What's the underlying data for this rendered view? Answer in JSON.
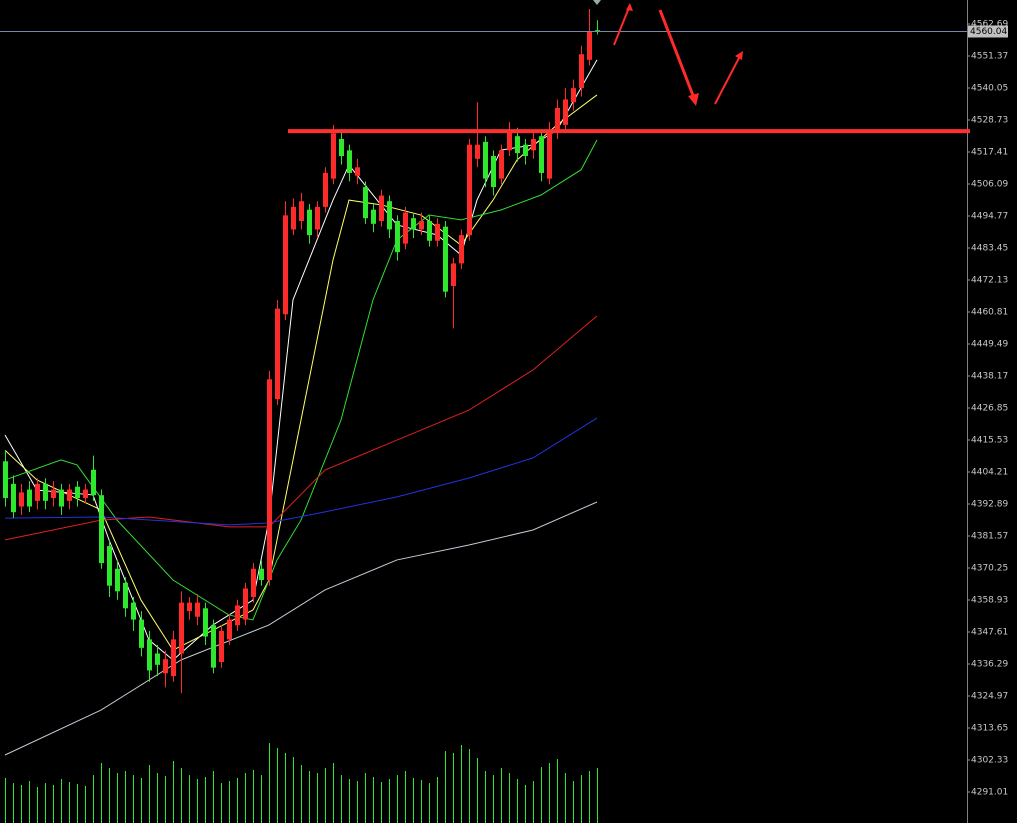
{
  "chart_data": {
    "type": "candlestick",
    "up_color": "#ff2a2a",
    "down_color": "#2ee82e",
    "open": [
      4408,
      4400,
      4392,
      4398,
      4394,
      4400,
      4395,
      4398,
      4394,
      4399,
      4395,
      4405,
      4396,
      4378,
      4370,
      4365,
      4358,
      4352,
      4345,
      4340,
      4333,
      4332,
      4340,
      4355,
      4353,
      4356,
      4350,
      4337,
      4345,
      4350,
      4352,
      4360,
      4370,
      4366,
      4430,
      4460,
      4490,
      4493,
      4497,
      4490,
      4498,
      4508,
      4522,
      4518,
      4509,
      4505,
      4497,
      4493,
      4500,
      4493,
      4485,
      4494,
      4490,
      4493,
      4486,
      4491,
      4470,
      4478,
      4488,
      4515,
      4521,
      4516,
      4508,
      4518,
      4523,
      4520,
      4518,
      4523,
      4508,
      4525,
      4527,
      4535,
      4540,
      4550,
      4560.5
    ],
    "high": [
      4412,
      4403,
      4400,
      4401,
      4402,
      4402,
      4401,
      4400,
      4400,
      4401,
      4400,
      4410,
      4398,
      4380,
      4373,
      4367,
      4360,
      4355,
      4348,
      4343,
      4341,
      4348,
      4362,
      4360,
      4361,
      4358,
      4352,
      4350,
      4354,
      4359,
      4365,
      4372,
      4373,
      4440,
      4465,
      4500,
      4501,
      4503,
      4499,
      4500,
      4512,
      4527,
      4525,
      4520,
      4515,
      4507,
      4499,
      4504,
      4502,
      4495,
      4498,
      4496,
      4496,
      4495,
      4494,
      4493,
      4480,
      4490,
      4522,
      4535,
      4523,
      4518,
      4520,
      4528,
      4526,
      4522,
      4525,
      4525,
      4528,
      4536,
      4540,
      4543,
      4555,
      4568,
      4564
    ],
    "low": [
      4392,
      4388,
      4389,
      4390,
      4391,
      4391,
      4392,
      4389,
      4391,
      4392,
      4393,
      4394,
      4370,
      4360,
      4359,
      4353,
      4348,
      4339,
      4330,
      4332,
      4328,
      4330,
      4326,
      4352,
      4350,
      4343,
      4333,
      4335,
      4343,
      4348,
      4350,
      4358,
      4364,
      4364,
      4428,
      4458,
      4488,
      4490,
      4485,
      4487,
      4496,
      4506,
      4513,
      4507,
      4506,
      4492,
      4489,
      4491,
      4487,
      4479,
      4483,
      4487,
      4488,
      4484,
      4484,
      4466,
      4455,
      4476,
      4486,
      4512,
      4505,
      4502,
      4506,
      4516,
      4514,
      4513,
      4515,
      4507,
      4506,
      4522,
      4525,
      4532,
      4537,
      4548,
      4559
    ],
    "close": [
      4395,
      4390,
      4397,
      4392,
      4400,
      4394,
      4398,
      4392,
      4398,
      4395,
      4398,
      4396,
      4372,
      4364,
      4362,
      4356,
      4352,
      4342,
      4334,
      4336,
      4338,
      4345,
      4358,
      4358,
      4358,
      4346,
      4335,
      4348,
      4352,
      4357,
      4363,
      4370,
      4366,
      4437,
      4462,
      4495,
      4498,
      4500,
      4488,
      4498,
      4510,
      4524,
      4516,
      4510,
      4512,
      4494,
      4492,
      4502,
      4490,
      4482,
      4496,
      4490,
      4493,
      4486,
      4492,
      4468,
      4478,
      4488,
      4520,
      4520,
      4508,
      4505,
      4518,
      4525,
      4517,
      4516,
      4522,
      4510,
      4525,
      4533,
      4536,
      4540,
      4552,
      4560,
      4560.04
    ],
    "volume": [
      45,
      40,
      38,
      42,
      36,
      40,
      38,
      44,
      41,
      39,
      37,
      48,
      60,
      55,
      50,
      52,
      48,
      45,
      58,
      50,
      47,
      62,
      55,
      48,
      44,
      46,
      52,
      40,
      42,
      45,
      50,
      53,
      48,
      80,
      75,
      70,
      66,
      58,
      52,
      50,
      55,
      60,
      48,
      44,
      42,
      50,
      46,
      41,
      44,
      48,
      52,
      45,
      43,
      40,
      46,
      72,
      70,
      78,
      74,
      65,
      52,
      48,
      55,
      50,
      44,
      38,
      42,
      56,
      60,
      64,
      50,
      42,
      48,
      52,
      55
    ],
    "series": [
      {
        "color": "#ffffff",
        "x": [
          0,
          4,
          11,
          13,
          18,
          21,
          26,
          31,
          33,
          36,
          41,
          43,
          46,
          49,
          54,
          57,
          59,
          62,
          66,
          69,
          74
        ],
        "values": [
          4417.3,
          4397.8,
          4396.1,
          4380.2,
          4344.8,
          4337.7,
          4350.1,
          4358.9,
          4387.2,
          4465.1,
          4500.4,
          4512.8,
          4502.2,
          4491.6,
          4488.1,
          4481.0,
          4500.4,
          4518.1,
          4519.9,
          4525.2,
          4550.0
        ]
      },
      {
        "color": "#ffff66",
        "x": [
          0,
          4,
          12,
          17,
          21,
          26,
          31,
          33,
          37,
          41,
          43,
          47,
          52,
          57,
          61,
          64,
          69,
          74
        ],
        "values": [
          4411.9,
          4401.4,
          4390.8,
          4358.9,
          4341.2,
          4348.3,
          4355.4,
          4366.0,
          4422.6,
          4479.2,
          4500.4,
          4498.7,
          4495.1,
          4484.5,
          4500.4,
          4514.6,
          4527.0,
          4537.6
        ]
      },
      {
        "color": "#33dd33",
        "x": [
          0,
          7,
          9,
          14,
          21,
          28,
          31,
          34,
          37,
          42,
          46,
          49,
          53,
          57,
          62,
          67,
          72,
          74
        ],
        "values": [
          4401.4,
          4408.5,
          4406.7,
          4387.2,
          4366.0,
          4353.6,
          4351.9,
          4373.1,
          4387.2,
          4422.6,
          4465.1,
          4486.3,
          4495.1,
          4493.4,
          4496.9,
          4502.2,
          4511.1,
          4521.7
        ]
      },
      {
        "color": "#e02020",
        "x": [
          0,
          12,
          18,
          28,
          33,
          40,
          49,
          58,
          66,
          74
        ],
        "values": [
          4380.2,
          4387.2,
          4388.3,
          4384.8,
          4384.8,
          4404.9,
          4415.5,
          4426.1,
          4440.3,
          4459.4
        ]
      },
      {
        "color": "#2233dd",
        "x": [
          0,
          12,
          28,
          33,
          40,
          49,
          58,
          66,
          74
        ],
        "values": [
          4387.9,
          4388.3,
          4385.5,
          4386.2,
          4390.1,
          4395.4,
          4402.1,
          4409.2,
          4423.3
        ]
      },
      {
        "color": "#c8c8d8",
        "x": [
          0,
          12,
          22,
          33,
          40,
          49,
          58,
          66,
          74
        ],
        "values": [
          4304.1,
          4320.0,
          4337.7,
          4350.1,
          4362.5,
          4373.1,
          4378.4,
          4383.7,
          4393.6
        ]
      }
    ],
    "levels": [
      4524.8
    ],
    "last_price": 4560.04,
    "ylim": [
      4280.04,
      4571.18
    ],
    "yticks": [
      4562.69,
      4551.37,
      4540.05,
      4528.73,
      4517.41,
      4506.09,
      4494.77,
      4483.45,
      4472.13,
      4460.81,
      4449.49,
      4438.17,
      4426.85,
      4415.53,
      4404.21,
      4392.89,
      4381.57,
      4370.25,
      4358.93,
      4347.61,
      4336.29,
      4324.97,
      4313.65,
      4302.33,
      4291.01
    ]
  }
}
